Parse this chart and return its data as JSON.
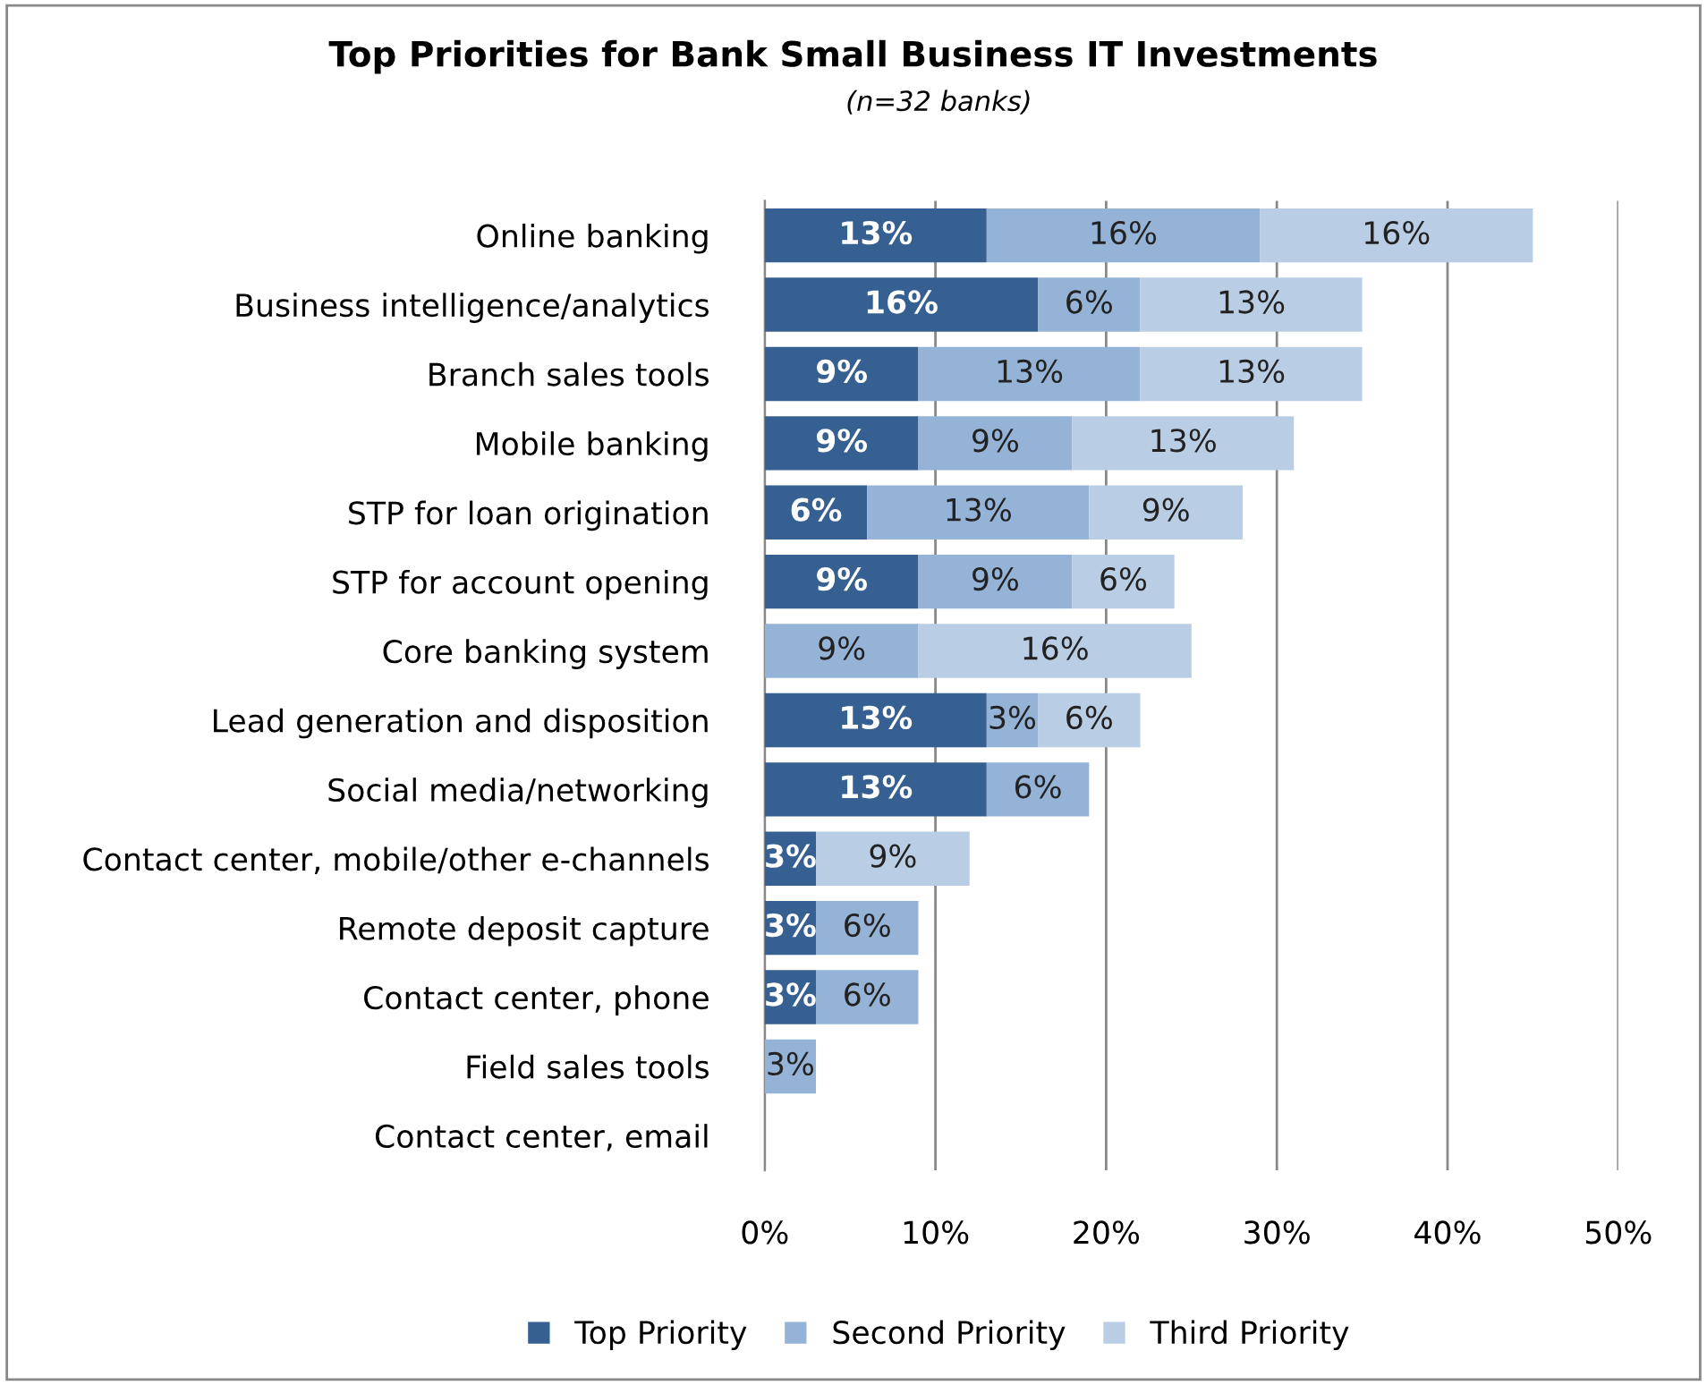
{
  "chart_data": {
    "type": "bar",
    "orientation": "horizontal",
    "stacked": true,
    "title": "Top Priorities for Bank Small Business IT Investments",
    "subtitle": "(n=32 banks)",
    "categories": [
      "Online banking",
      "Business intelligence/analytics",
      "Branch sales tools",
      "Mobile banking",
      "STP for loan origination",
      "STP for account opening",
      "Core banking system",
      "Lead generation and disposition",
      "Social media/networking",
      "Contact center, mobile/other e-channels",
      "Remote deposit capture",
      "Contact center, phone",
      "Field sales tools",
      "Contact center, email"
    ],
    "series": [
      {
        "name": "Top Priority",
        "color": "#376092",
        "values": [
          13,
          16,
          9,
          9,
          6,
          9,
          null,
          13,
          13,
          3,
          3,
          3,
          null,
          null
        ],
        "value_labels": [
          "13%",
          "16%",
          "9%",
          "9%",
          "6%",
          "9%",
          null,
          "13%",
          "13%",
          "3%",
          "3%",
          "3%",
          null,
          null
        ]
      },
      {
        "name": "Second Priority",
        "color": "#95b3d7",
        "values": [
          16,
          6,
          13,
          9,
          13,
          9,
          9,
          3,
          6,
          null,
          6,
          6,
          3,
          null
        ],
        "value_labels": [
          "16%",
          "6%",
          "13%",
          "9%",
          "13%",
          "9%",
          "9%",
          "3%",
          "6%",
          null,
          "6%",
          "6%",
          "3%",
          null
        ]
      },
      {
        "name": "Third Priority",
        "color": "#b9cde5",
        "values": [
          16,
          13,
          13,
          13,
          9,
          6,
          16,
          6,
          null,
          9,
          null,
          null,
          null,
          null
        ],
        "value_labels": [
          "16%",
          "13%",
          "13%",
          "13%",
          "9%",
          "6%",
          "16%",
          "6%",
          null,
          "9%",
          null,
          null,
          null,
          null
        ]
      }
    ],
    "xlim": [
      0,
      50
    ],
    "xticks": [
      {
        "value": 0,
        "label": "0%"
      },
      {
        "value": 10,
        "label": "10%"
      },
      {
        "value": 20,
        "label": "20%"
      },
      {
        "value": 30,
        "label": "30%"
      },
      {
        "value": 40,
        "label": "40%"
      },
      {
        "value": 50,
        "label": "50%"
      }
    ],
    "grid": "x",
    "legend": "bottom"
  }
}
